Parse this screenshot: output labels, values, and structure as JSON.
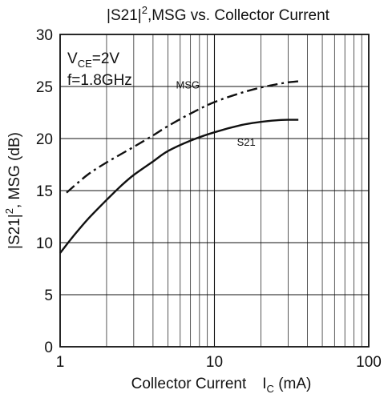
{
  "chart_data": {
    "type": "line",
    "title_parts": {
      "pre": "|S21|",
      "sup": "2",
      "post": ",MSG vs. Collector Current"
    },
    "xlabel_parts": {
      "pre": "Collector Current",
      "var": "I",
      "sub": "C",
      "post": " (mA)"
    },
    "ylabel_parts": {
      "pre": "|S21|",
      "sup": "2",
      "post": ", MSG (dB)"
    },
    "x_scale": "log",
    "xlim": [
      1,
      100
    ],
    "ylim": [
      0,
      30
    ],
    "x_ticks": [
      "1",
      "10",
      "100"
    ],
    "y_ticks": [
      "0",
      "5",
      "10",
      "15",
      "20",
      "25",
      "30"
    ],
    "grid": true,
    "conditions": {
      "vce_var": "V",
      "vce_sub": "CE",
      "vce_value": "=2V",
      "freq": "f=1.8GHz"
    },
    "series": [
      {
        "name": "MSG",
        "style": "dash-dot",
        "x": [
          1.1,
          1.5,
          2,
          3,
          4,
          5,
          7,
          10,
          15,
          20,
          25,
          30,
          35
        ],
        "y": [
          14.8,
          16.5,
          17.7,
          19.2,
          20.3,
          21.2,
          22.4,
          23.5,
          24.4,
          24.9,
          25.2,
          25.4,
          25.5
        ]
      },
      {
        "name": "S21",
        "style": "solid",
        "x": [
          1,
          1.2,
          1.5,
          2,
          2.5,
          3,
          4,
          5,
          7,
          10,
          15,
          20,
          25,
          30,
          35
        ],
        "y": [
          9.0,
          10.5,
          12.2,
          14.1,
          15.5,
          16.5,
          17.8,
          18.8,
          19.8,
          20.6,
          21.3,
          21.6,
          21.75,
          21.8,
          21.8
        ]
      }
    ],
    "line_color": "#111111"
  }
}
